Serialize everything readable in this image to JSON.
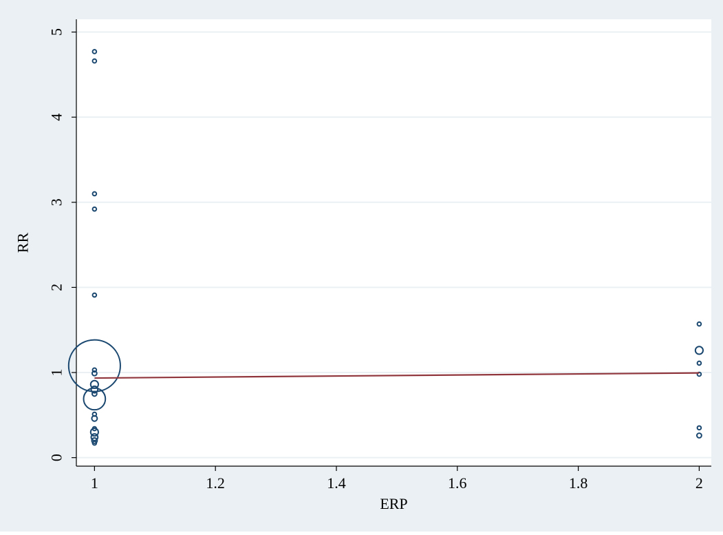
{
  "chart_data": {
    "type": "scatter",
    "title": "",
    "xlabel": "ERP",
    "ylabel": "RR",
    "xlim": [
      0.97,
      2.02
    ],
    "ylim": [
      -0.1,
      5.15
    ],
    "x_ticks": [
      1,
      1.2,
      1.4,
      1.6,
      1.8,
      2
    ],
    "x_tick_labels": [
      "1",
      "1.2",
      "1.4",
      "1.6",
      "1.8",
      "2"
    ],
    "y_ticks": [
      0,
      1,
      2,
      3,
      4,
      5
    ],
    "y_tick_labels": [
      "0",
      "1",
      "2",
      "3",
      "4",
      "5"
    ],
    "grid": "horizontal",
    "legend": "none",
    "colors": {
      "outer_background": "#eaf0f3",
      "plot_background": "#ffffff",
      "gridline": "#eaf0f3",
      "marker": "#1a476f",
      "fit_line": "#90353b",
      "axis": "#000000"
    },
    "series": [
      {
        "kind": "weighted-markers",
        "points": [
          {
            "x": 1,
            "y": 4.77,
            "w": 1
          },
          {
            "x": 1,
            "y": 4.66,
            "w": 1
          },
          {
            "x": 1,
            "y": 3.1,
            "w": 1
          },
          {
            "x": 1,
            "y": 2.92,
            "w": 1
          },
          {
            "x": 1,
            "y": 1.91,
            "w": 1
          },
          {
            "x": 1,
            "y": 1.08,
            "w": 180
          },
          {
            "x": 1,
            "y": 1.03,
            "w": 1
          },
          {
            "x": 1,
            "y": 0.99,
            "w": 1.5
          },
          {
            "x": 1,
            "y": 0.86,
            "w": 4
          },
          {
            "x": 1,
            "y": 0.8,
            "w": 3
          },
          {
            "x": 1,
            "y": 0.75,
            "w": 1.5
          },
          {
            "x": 1,
            "y": 0.69,
            "w": 32
          },
          {
            "x": 1,
            "y": 0.51,
            "w": 1
          },
          {
            "x": 1,
            "y": 0.46,
            "w": 2
          },
          {
            "x": 1,
            "y": 0.34,
            "w": 1
          },
          {
            "x": 1,
            "y": 0.3,
            "w": 4
          },
          {
            "x": 1,
            "y": 0.24,
            "w": 3
          },
          {
            "x": 1,
            "y": 0.2,
            "w": 2
          },
          {
            "x": 1,
            "y": 0.17,
            "w": 1
          },
          {
            "x": 2,
            "y": 1.57,
            "w": 1
          },
          {
            "x": 2,
            "y": 1.26,
            "w": 4
          },
          {
            "x": 2,
            "y": 1.11,
            "w": 1
          },
          {
            "x": 2,
            "y": 0.98,
            "w": 1
          },
          {
            "x": 2,
            "y": 0.35,
            "w": 1
          },
          {
            "x": 2,
            "y": 0.26,
            "w": 1.5
          }
        ]
      },
      {
        "kind": "fitted-line",
        "points": [
          {
            "x": 1,
            "y": 0.935
          },
          {
            "x": 2,
            "y": 0.995
          }
        ]
      }
    ]
  }
}
